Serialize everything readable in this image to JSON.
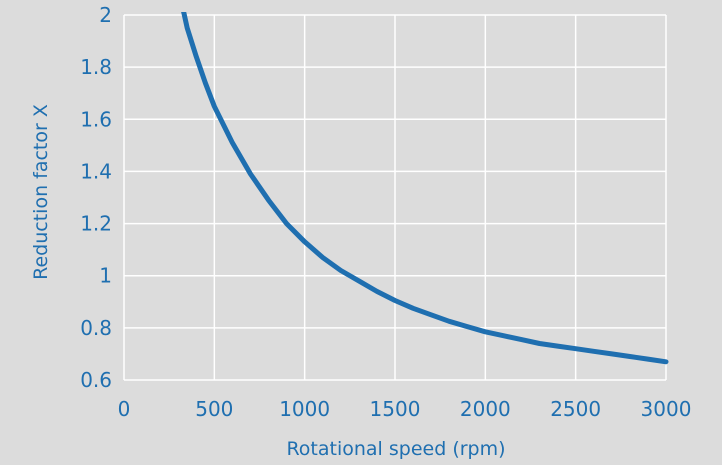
{
  "chart_data": {
    "type": "line",
    "title": "",
    "xlabel": "Rotational speed (rpm)",
    "ylabel": "Reduction factor X",
    "xlim": [
      0,
      3000
    ],
    "ylim": [
      0.6,
      2.0
    ],
    "x_ticks": [
      0,
      500,
      1000,
      1500,
      2000,
      2500,
      3000
    ],
    "x_tick_labels": [
      "0",
      "500",
      "1000",
      "1500",
      "2000",
      "2500",
      "3000"
    ],
    "y_ticks": [
      0.6,
      0.8,
      1.0,
      1.2,
      1.4,
      1.6,
      1.8,
      2.0
    ],
    "y_tick_labels": [
      "0.6",
      "0.8",
      "1",
      "1.2",
      "1.4",
      "1.6",
      "1.8",
      "2"
    ],
    "grid": true,
    "colors": {
      "line": "#1f6fb0",
      "grid": "#ffffff",
      "background": "#dcdcdc",
      "text": "#1f6fb0"
    },
    "series": [
      {
        "x": [
          315,
          350,
          400,
          450,
          500,
          600,
          700,
          800,
          900,
          1000,
          1100,
          1200,
          1300,
          1400,
          1500,
          1600,
          1700,
          1800,
          1900,
          2000,
          2100,
          2200,
          2300,
          2400,
          2500,
          2600,
          2700,
          2800,
          2900,
          3000
        ],
        "y": [
          2.06,
          1.95,
          1.84,
          1.74,
          1.65,
          1.51,
          1.39,
          1.29,
          1.2,
          1.13,
          1.07,
          1.02,
          0.98,
          0.94,
          0.905,
          0.875,
          0.85,
          0.825,
          0.805,
          0.785,
          0.77,
          0.755,
          0.74,
          0.73,
          0.72,
          0.71,
          0.7,
          0.69,
          0.68,
          0.67
        ]
      }
    ]
  }
}
